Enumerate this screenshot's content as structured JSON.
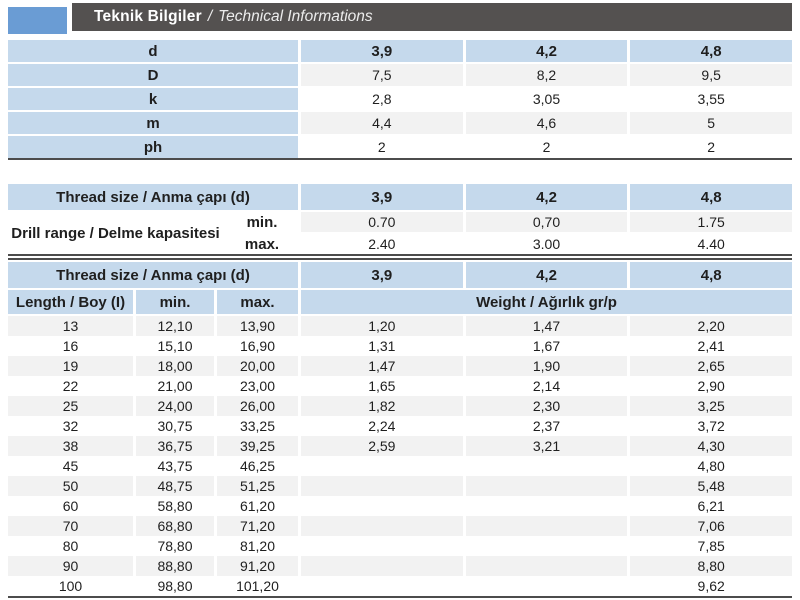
{
  "header": {
    "title": "Teknik Bilgiler",
    "separator": "/",
    "subtitle": "Technical Informations"
  },
  "dim_table": {
    "rows": [
      {
        "label": "d",
        "values": [
          "3,9",
          "4,2",
          "4,8"
        ]
      },
      {
        "label": "D",
        "values": [
          "7,5",
          "8,2",
          "9,5"
        ]
      },
      {
        "label": "k",
        "values": [
          "2,8",
          "3,05",
          "3,55"
        ]
      },
      {
        "label": "m",
        "values": [
          "4,4",
          "4,6",
          "5"
        ]
      },
      {
        "label": "ph",
        "values": [
          "2",
          "2",
          "2"
        ]
      }
    ]
  },
  "drill_table": {
    "header_label": "Thread size / Anma çapı (d)",
    "header_values": [
      "3,9",
      "4,2",
      "4,8"
    ],
    "row_label": "Drill range / Delme kapasitesi",
    "min_label": "min.",
    "max_label": "max.",
    "min_values": [
      "0.70",
      "0,70",
      "1.75"
    ],
    "max_values": [
      "2.40",
      "3.00",
      "4.40"
    ]
  },
  "length_table": {
    "header_label": "Thread size / Anma çapı (d)",
    "header_values": [
      "3,9",
      "4,2",
      "4,8"
    ],
    "length_label": "Length / Boy (I)",
    "min_label": "min.",
    "max_label": "max.",
    "weight_label": "Weight / Ağırlık gr/p",
    "rows": [
      {
        "length": "13",
        "min": "12,10",
        "max": "13,90",
        "weights": [
          "1,20",
          "1,47",
          "2,20"
        ]
      },
      {
        "length": "16",
        "min": "15,10",
        "max": "16,90",
        "weights": [
          "1,31",
          "1,67",
          "2,41"
        ]
      },
      {
        "length": "19",
        "min": "18,00",
        "max": "20,00",
        "weights": [
          "1,47",
          "1,90",
          "2,65"
        ]
      },
      {
        "length": "22",
        "min": "21,00",
        "max": "23,00",
        "weights": [
          "1,65",
          "2,14",
          "2,90"
        ]
      },
      {
        "length": "25",
        "min": "24,00",
        "max": "26,00",
        "weights": [
          "1,82",
          "2,30",
          "3,25"
        ]
      },
      {
        "length": "32",
        "min": "30,75",
        "max": "33,25",
        "weights": [
          "2,24",
          "2,37",
          "3,72"
        ]
      },
      {
        "length": "38",
        "min": "36,75",
        "max": "39,25",
        "weights": [
          "2,59",
          "3,21",
          "4,30"
        ]
      },
      {
        "length": "45",
        "min": "43,75",
        "max": "46,25",
        "weights": [
          "",
          "",
          "4,80"
        ]
      },
      {
        "length": "50",
        "min": "48,75",
        "max": "51,25",
        "weights": [
          "",
          "",
          "5,48"
        ]
      },
      {
        "length": "60",
        "min": "58,80",
        "max": "61,20",
        "weights": [
          "",
          "",
          "6,21"
        ]
      },
      {
        "length": "70",
        "min": "68,80",
        "max": "71,20",
        "weights": [
          "",
          "",
          "7,06"
        ]
      },
      {
        "length": "80",
        "min": "78,80",
        "max": "81,20",
        "weights": [
          "",
          "",
          "7,85"
        ]
      },
      {
        "length": "90",
        "min": "88,80",
        "max": "91,20",
        "weights": [
          "",
          "",
          "8,80"
        ]
      },
      {
        "length": "100",
        "min": "98,80",
        "max": "101,20",
        "weights": [
          "",
          "",
          "9,62"
        ]
      }
    ]
  },
  "colors": {
    "accent_blue": "#6a9cd4",
    "header_cell_blue": "#c5d9ec",
    "title_bar_gray": "#545150",
    "alt_row_gray": "#f2f2f2",
    "divider_line": "#4c4c4c"
  }
}
